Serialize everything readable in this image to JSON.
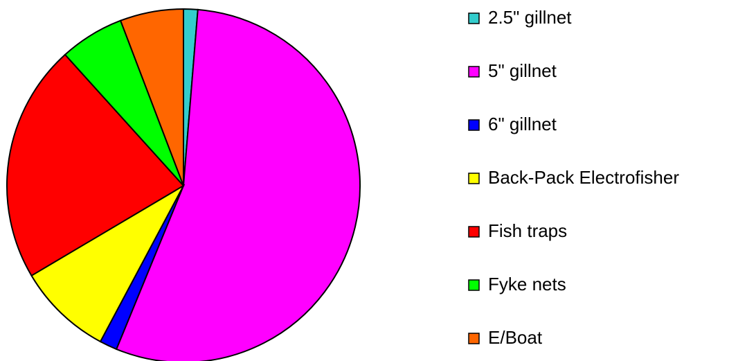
{
  "chart_data": {
    "type": "pie",
    "categories": [
      "2.5\" gillnet",
      "5\" gillnet",
      "6\" gillnet",
      "Back-Pack Electrofisher",
      "Fish traps",
      "Fyke nets",
      "E/Boat"
    ],
    "values": [
      1.3,
      54.9,
      1.6,
      8.7,
      21.8,
      5.9,
      5.8
    ],
    "colors": [
      "#33cccc",
      "#ff00ff",
      "#0000ff",
      "#ffff00",
      "#ff0000",
      "#00ff00",
      "#ff6600"
    ],
    "legend": "right"
  }
}
